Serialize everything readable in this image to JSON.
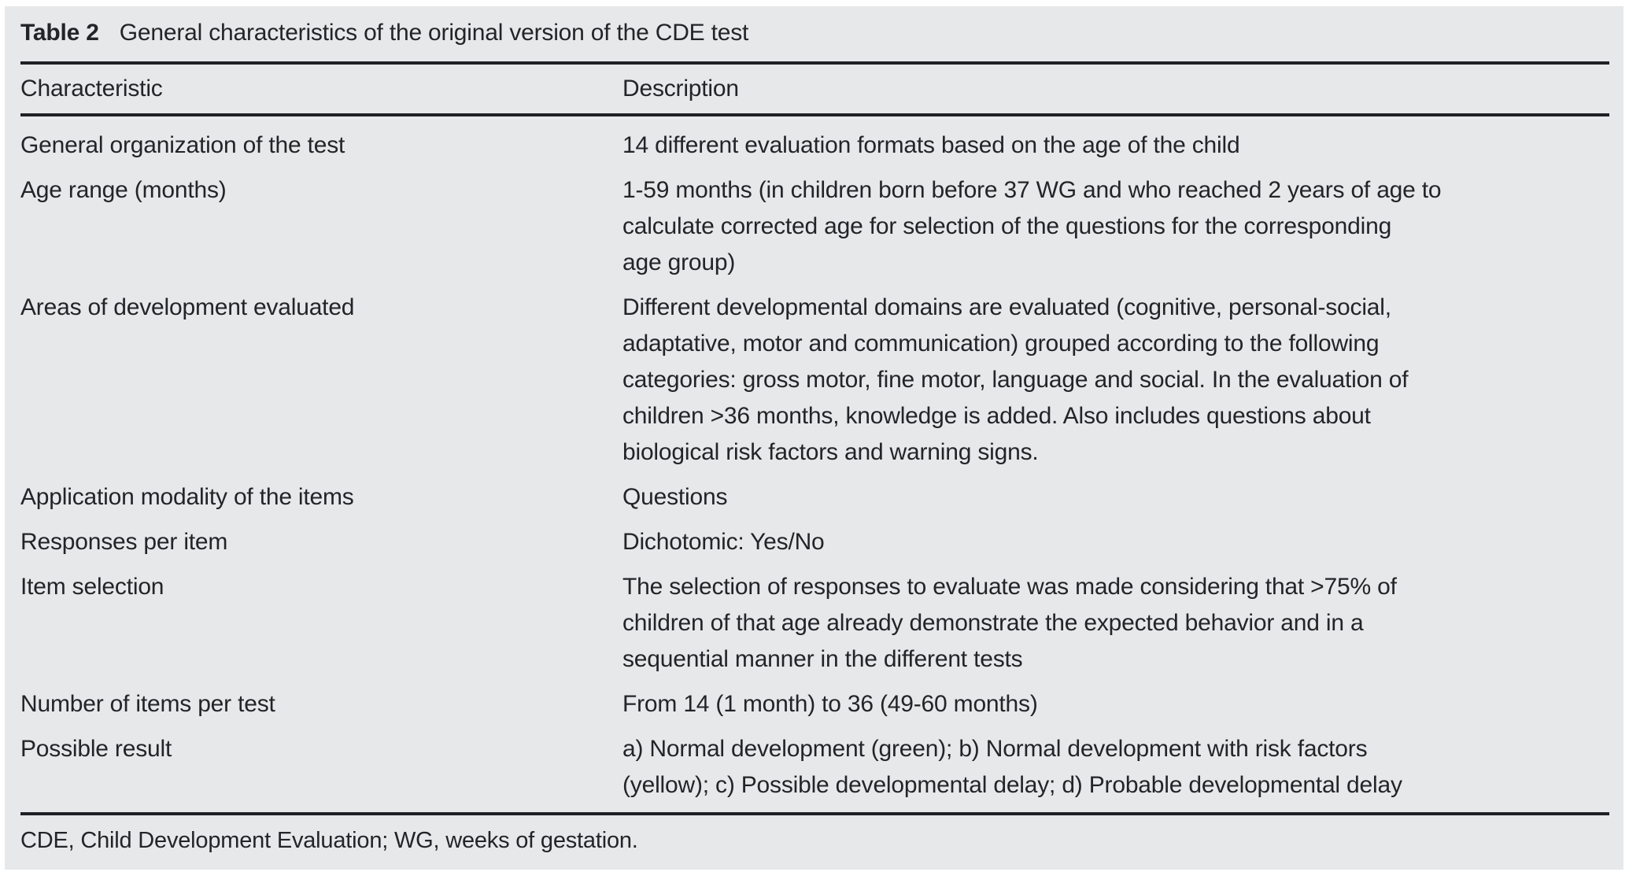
{
  "table": {
    "title_label": "Table 2",
    "title_caption": "General characteristics of the original version of the CDE test",
    "columns": [
      "Characteristic",
      "Description"
    ],
    "rows": [
      {
        "characteristic": "General organization of the test",
        "description": [
          "14 different evaluation formats based on the age of the child"
        ]
      },
      {
        "characteristic": "Age range (months)",
        "description": [
          "1-59 months (in children born before 37 WG and who reached 2 years of age to",
          "calculate corrected age for selection of the questions for the corresponding",
          "age group)"
        ]
      },
      {
        "characteristic": "Areas of development evaluated",
        "description": [
          "Different developmental domains are evaluated (cognitive, personal-social,",
          "adaptative, motor and communication) grouped according to the following",
          "categories: gross motor, fine motor, language and social. In the evaluation of",
          "children >36 months, knowledge is added. Also includes questions about",
          "biological risk factors and warning signs."
        ]
      },
      {
        "characteristic": "Application modality of the items",
        "description": [
          "Questions"
        ]
      },
      {
        "characteristic": "Responses per item",
        "description": [
          "Dichotomic: Yes/No"
        ]
      },
      {
        "characteristic": "Item selection",
        "description": [
          "The selection of responses to evaluate was made considering that >75% of",
          "children of that age already demonstrate the expected behavior and in a",
          "sequential manner in the different tests"
        ]
      },
      {
        "characteristic": "Number of items per test",
        "description": [
          "From 14 (1 month) to 36 (49-60 months)"
        ]
      },
      {
        "characteristic": "Possible result",
        "description": [
          "a) Normal development (green); b) Normal development with risk factors",
          "(yellow); c) Possible developmental delay; d) Probable developmental delay"
        ]
      }
    ],
    "footnote": "CDE, Child Development Evaluation; WG, weeks of gestation.",
    "colors": {
      "panel_bg": "#e7e8e9",
      "text": "#242428",
      "rule": "#202125"
    }
  }
}
